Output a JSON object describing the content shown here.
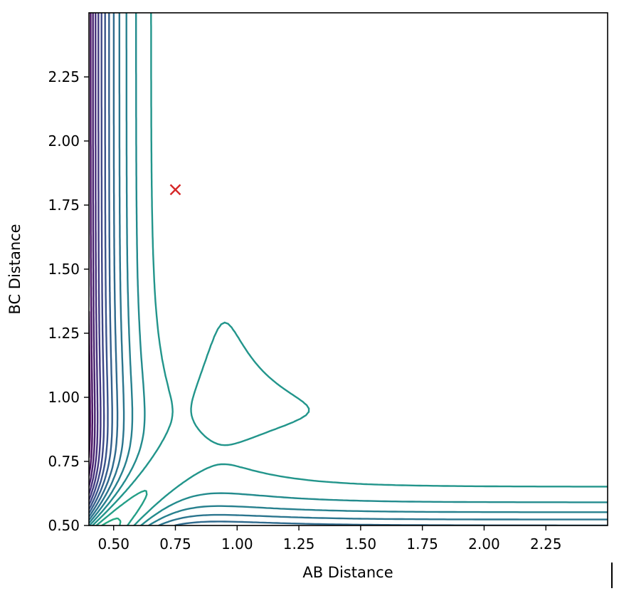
{
  "chart_data": {
    "type": "contour",
    "title": "",
    "xlabel": "AB Distance",
    "ylabel": "BC Distance",
    "xlim": [
      0.4,
      2.5
    ],
    "ylim": [
      0.5,
      2.5
    ],
    "xticks": [
      0.5,
      0.75,
      1.0,
      1.25,
      1.5,
      1.75,
      2.0,
      2.25
    ],
    "xtick_labels": [
      "0.50",
      "0.75",
      "1.00",
      "1.25",
      "1.50",
      "1.75",
      "2.00",
      "2.25"
    ],
    "yticks": [
      0.5,
      0.75,
      1.0,
      1.25,
      1.5,
      1.75,
      2.0,
      2.25
    ],
    "ytick_labels": [
      "0.50",
      "0.75",
      "1.00",
      "1.25",
      "1.50",
      "1.75",
      "2.00",
      "2.25"
    ],
    "colormap": "viridis",
    "contour_levels": 24,
    "potential": {
      "well_depth": 1.0,
      "equilibrium_distance": 0.95,
      "morse_width": 4.0,
      "coupling": 0.9
    },
    "marker": {
      "symbol": "x",
      "x": 0.75,
      "y": 1.81,
      "color": "#d62728"
    },
    "grid": false,
    "legend": "none"
  }
}
